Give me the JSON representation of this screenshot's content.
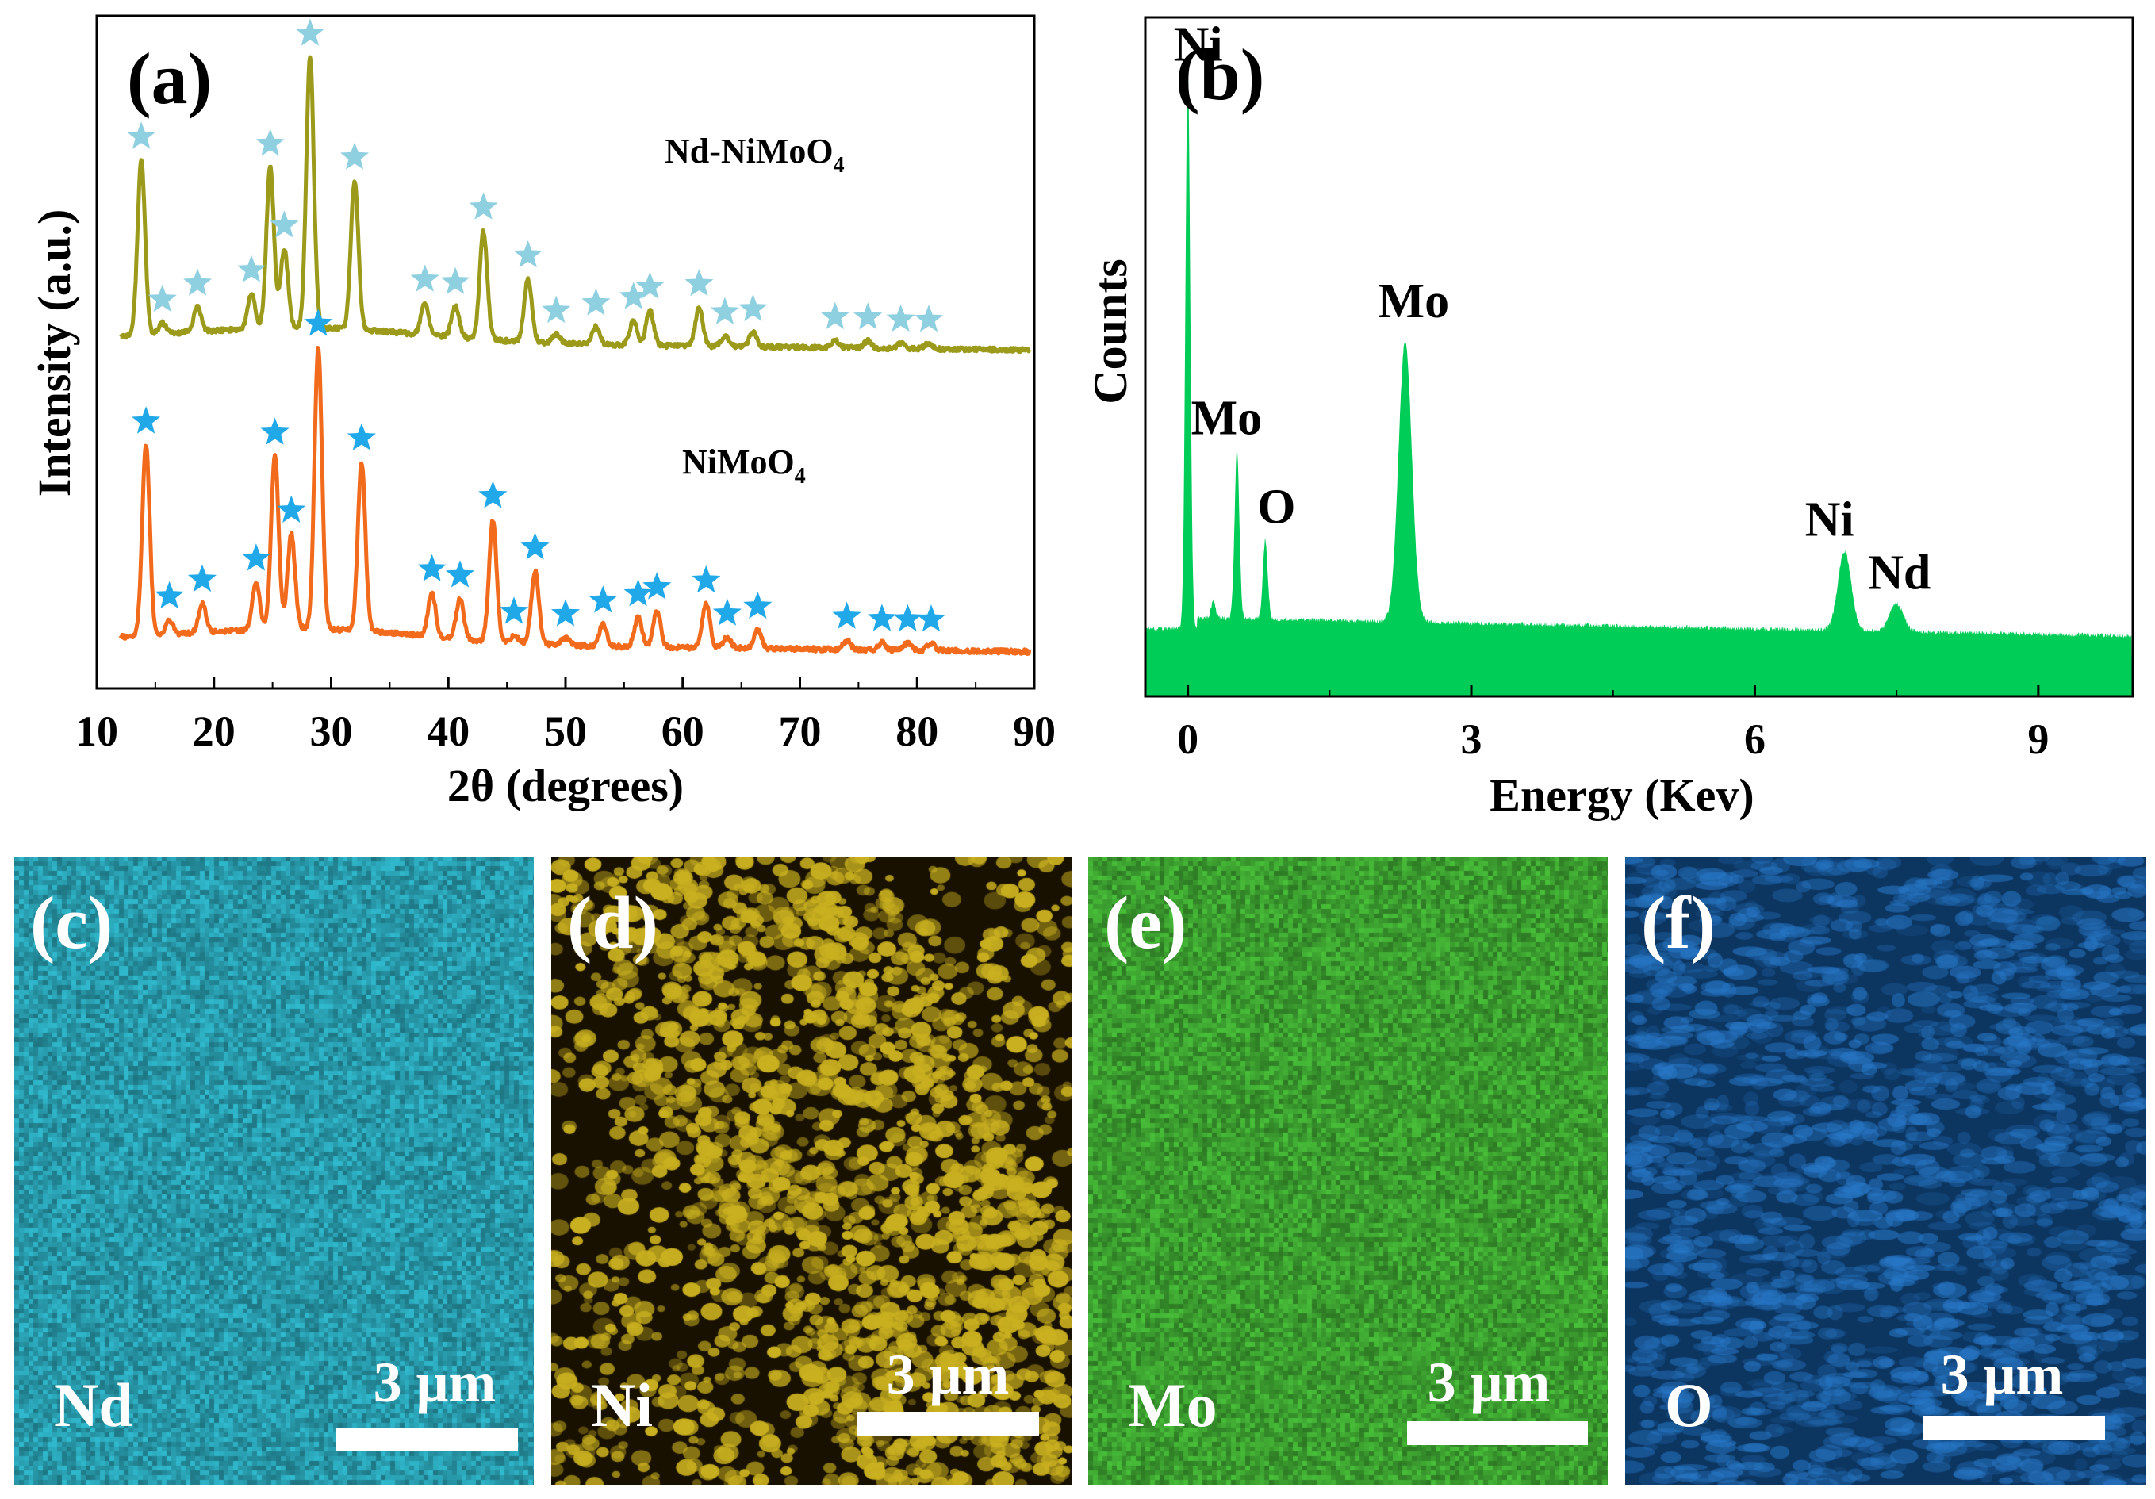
{
  "chart_data": [
    {
      "panel": "(a)",
      "type": "line",
      "xlabel": "2θ (degrees)",
      "ylabel": "Intensity (a.u.)",
      "xlim": [
        10,
        90
      ],
      "xticks": [
        "10",
        "20",
        "30",
        "40",
        "50",
        "60",
        "70",
        "80",
        "90"
      ],
      "series": [
        {
          "name": "Nd-NiMoO4",
          "label_main": "Nd-NiMoO",
          "label_sub": "4",
          "color": "#9c9a1a",
          "star_color": "#8ecfe0",
          "baseline": 0.22,
          "peaks": [
            {
              "x": 13.8,
              "h": 1.0,
              "star": true
            },
            {
              "x": 15.6,
              "h": 0.06,
              "star": true
            },
            {
              "x": 18.6,
              "h": 0.14,
              "star": true
            },
            {
              "x": 23.2,
              "h": 0.2,
              "star": true
            },
            {
              "x": 24.8,
              "h": 0.92,
              "star": true
            },
            {
              "x": 26.0,
              "h": 0.45,
              "star": true
            },
            {
              "x": 28.2,
              "h": 1.55,
              "star": true
            },
            {
              "x": 32.0,
              "h": 0.85,
              "star": true
            },
            {
              "x": 38.0,
              "h": 0.18,
              "star": true
            },
            {
              "x": 40.6,
              "h": 0.18,
              "star": true
            },
            {
              "x": 43.0,
              "h": 0.62,
              "star": true
            },
            {
              "x": 46.8,
              "h": 0.36,
              "star": true
            },
            {
              "x": 49.2,
              "h": 0.05,
              "star": true
            },
            {
              "x": 52.6,
              "h": 0.1,
              "star": true
            },
            {
              "x": 55.8,
              "h": 0.14,
              "star": true
            },
            {
              "x": 57.2,
              "h": 0.2,
              "star": true
            },
            {
              "x": 61.4,
              "h": 0.22,
              "star": true
            },
            {
              "x": 63.6,
              "h": 0.06,
              "star": true
            },
            {
              "x": 66.0,
              "h": 0.08,
              "star": true
            },
            {
              "x": 73.0,
              "h": 0.04,
              "star": true
            },
            {
              "x": 75.8,
              "h": 0.04,
              "star": true
            },
            {
              "x": 78.6,
              "h": 0.03,
              "star": true
            },
            {
              "x": 81.0,
              "h": 0.03,
              "star": true
            }
          ]
        },
        {
          "name": "NiMoO4",
          "label_main": "NiMoO",
          "label_sub": "4",
          "color": "#f26a1b",
          "star_color": "#21a8e8",
          "baseline": 0.0,
          "peaks": [
            {
              "x": 14.2,
              "h": 1.05,
              "star": true
            },
            {
              "x": 16.2,
              "h": 0.08,
              "star": true
            },
            {
              "x": 19.0,
              "h": 0.16,
              "star": true
            },
            {
              "x": 23.6,
              "h": 0.26,
              "star": true
            },
            {
              "x": 25.2,
              "h": 0.95,
              "star": true
            },
            {
              "x": 26.6,
              "h": 0.52,
              "star": true
            },
            {
              "x": 28.9,
              "h": 1.55,
              "star": true
            },
            {
              "x": 32.6,
              "h": 0.93,
              "star": true
            },
            {
              "x": 38.6,
              "h": 0.24,
              "star": true
            },
            {
              "x": 41.0,
              "h": 0.22,
              "star": true
            },
            {
              "x": 43.8,
              "h": 0.67,
              "star": true
            },
            {
              "x": 45.6,
              "h": 0.04,
              "star": true
            },
            {
              "x": 47.4,
              "h": 0.4,
              "star": true
            },
            {
              "x": 50.0,
              "h": 0.04,
              "star": true
            },
            {
              "x": 53.2,
              "h": 0.12,
              "star": true
            },
            {
              "x": 56.2,
              "h": 0.16,
              "star": true
            },
            {
              "x": 57.8,
              "h": 0.2,
              "star": true
            },
            {
              "x": 62.0,
              "h": 0.24,
              "star": true
            },
            {
              "x": 63.8,
              "h": 0.06,
              "star": true
            },
            {
              "x": 66.4,
              "h": 0.1,
              "star": true
            },
            {
              "x": 74.0,
              "h": 0.05,
              "star": true
            },
            {
              "x": 77.0,
              "h": 0.04,
              "star": true
            },
            {
              "x": 79.2,
              "h": 0.04,
              "star": true
            },
            {
              "x": 81.2,
              "h": 0.04,
              "star": true
            }
          ]
        }
      ]
    },
    {
      "panel": "(b)",
      "type": "area",
      "xlabel": "Energy (Kev)",
      "ylabel": "Counts",
      "xlim": [
        -0.45,
        10.0
      ],
      "xticks": [
        "0",
        "3",
        "6",
        "9"
      ],
      "color": "#00cc58",
      "background_level": 0.13,
      "peaks": [
        {
          "x": 0.0,
          "h": 1.0,
          "label": "Ni"
        },
        {
          "x": 0.27,
          "h": 0.03,
          "label": ""
        },
        {
          "x": 0.52,
          "h": 0.3,
          "label": "Mo"
        },
        {
          "x": 0.82,
          "h": 0.14,
          "label": "O"
        },
        {
          "x": 2.3,
          "h": 0.5,
          "label": "Mo"
        },
        {
          "x": 6.95,
          "h": 0.14,
          "label": "Ni"
        },
        {
          "x": 7.5,
          "h": 0.05,
          "label": "Nd"
        }
      ]
    }
  ],
  "maps": [
    {
      "letter": "(c)",
      "element": "Nd",
      "scale": "3 μm",
      "color": "#2aa3b5",
      "style": "uniform"
    },
    {
      "letter": "(d)",
      "element": "Ni",
      "scale": "3 μm",
      "color": "#c9b020",
      "style": "sparse"
    },
    {
      "letter": "(e)",
      "element": "Mo",
      "scale": "3 μm",
      "color": "#3fa832",
      "style": "uniform"
    },
    {
      "letter": "(f)",
      "element": "O",
      "scale": "3 μm",
      "color": "#14538f",
      "style": "blotchy"
    }
  ]
}
